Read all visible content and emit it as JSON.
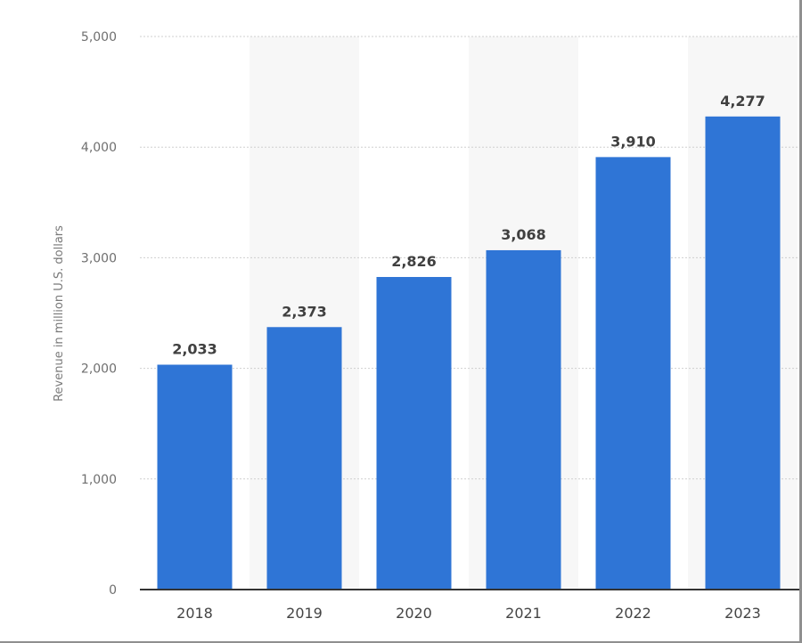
{
  "chart_data": {
    "type": "bar",
    "categories": [
      "2018",
      "2019",
      "2020",
      "2021",
      "2022",
      "2023"
    ],
    "values": [
      2033,
      2373,
      2826,
      3068,
      3910,
      4277
    ],
    "value_labels": [
      "2,033",
      "2,373",
      "2,826",
      "3,068",
      "3,910",
      "4,277"
    ],
    "title": "",
    "xlabel": "",
    "ylabel": "Revenue in million U.S. dollars",
    "ylim": [
      0,
      5000
    ],
    "y_ticks": [
      0,
      1000,
      2000,
      3000,
      4000,
      5000
    ],
    "y_tick_labels": [
      "0",
      "1,000",
      "2,000",
      "3,000",
      "4,000",
      "5,000"
    ],
    "grid": true,
    "legend": "none",
    "colors": {
      "bar": "#2f75d6",
      "alternate_band": "#f7f7f7",
      "grid": "#cfcfcf",
      "axis": "#333333"
    }
  }
}
